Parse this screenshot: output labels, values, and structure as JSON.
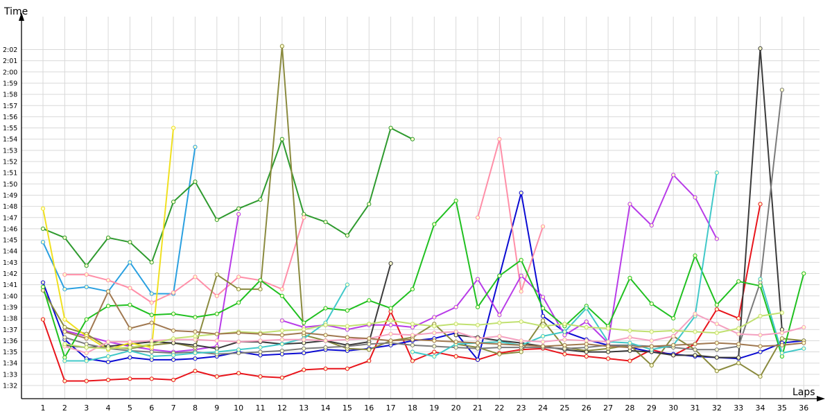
{
  "chart_data": {
    "type": "line",
    "ylabel": "Time",
    "xlabel": "Laps",
    "x": [
      1,
      2,
      3,
      4,
      5,
      6,
      7,
      8,
      9,
      10,
      11,
      12,
      13,
      14,
      15,
      16,
      17,
      18,
      19,
      20,
      21,
      22,
      23,
      24,
      25,
      26,
      27,
      28,
      29,
      30,
      31,
      32,
      33,
      34,
      35,
      36
    ],
    "y_ticks": [
      "1:32",
      "1:33",
      "1:34",
      "1:35",
      "1:36",
      "1:37",
      "1:38",
      "1:39",
      "1:40",
      "1:41",
      "1:42",
      "1:43",
      "1:44",
      "1:45",
      "1:46",
      "1:47",
      "1:48",
      "1:49",
      "1:50",
      "1:51",
      "1:52",
      "1:53",
      "1:54",
      "1:55",
      "1:56",
      "1:57",
      "1:58",
      "1:59",
      "2:00",
      "2:01",
      "2:02"
    ],
    "ylim_seconds": [
      91.3,
      124.7
    ],
    "grid": true,
    "legend": "none",
    "series": [
      {
        "color": "#e8141b",
        "values": [
          97.9,
          92.4,
          92.4,
          92.5,
          92.6,
          92.6,
          92.5,
          93.3,
          92.8,
          93.1,
          92.8,
          92.7,
          93.4,
          93.5,
          93.5,
          94.2,
          98.6,
          94.2,
          95.0,
          94.6,
          94.3,
          94.9,
          95.2,
          95.3,
          94.8,
          94.6,
          94.4,
          94.2,
          95.2,
          94.7,
          95.7,
          98.8,
          98.0,
          108.2,
          null,
          null
        ]
      },
      {
        "color": "#0a0ad2",
        "values": [
          101.2,
          96.1,
          94.4,
          94.1,
          94.5,
          94.3,
          94.3,
          94.4,
          94.6,
          95.0,
          94.7,
          94.8,
          94.9,
          95.2,
          95.1,
          95.3,
          95.6,
          96.0,
          96.2,
          96.7,
          94.3,
          101.8,
          109.2,
          98.2,
          96.8,
          96.1,
          95.6,
          95.4,
          95.0,
          94.8,
          94.6,
          94.5,
          94.4,
          95.0,
          95.8,
          96.0
        ]
      },
      {
        "color": "#2aa0e0",
        "values": [
          104.8,
          100.6,
          100.8,
          100.4,
          103.0,
          100.2,
          100.2,
          113.3,
          null,
          null,
          null,
          null,
          null,
          null,
          null,
          null,
          null,
          null,
          null,
          null,
          null,
          null,
          null,
          null,
          null,
          null,
          null,
          null,
          null,
          null,
          null,
          null,
          null,
          null,
          null,
          null
        ]
      },
      {
        "color": "#2e9a2e",
        "values": [
          106.0,
          105.2,
          102.7,
          105.2,
          104.8,
          103.0,
          108.4,
          110.2,
          106.8,
          107.8,
          108.6,
          114.0,
          107.3,
          106.6,
          105.4,
          108.2,
          115.0,
          114.0,
          null,
          null,
          null,
          null,
          null,
          null,
          null,
          null,
          null,
          null,
          null,
          null,
          null,
          null,
          null,
          null,
          null,
          null
        ]
      },
      {
        "color": "#ff8fa8",
        "values": [
          null,
          101.9,
          101.9,
          101.4,
          100.7,
          99.4,
          100.3,
          101.7,
          100.0,
          101.7,
          101.4,
          100.6,
          107.0,
          null,
          null,
          null,
          null,
          null,
          null,
          null,
          107.0,
          114.0,
          100.4,
          106.2,
          null,
          null,
          null,
          null,
          null,
          null,
          null,
          null,
          null,
          null,
          null,
          null
        ]
      },
      {
        "color": "#b83ce8",
        "values": [
          null,
          96.9,
          96.4,
          95.9,
          95.5,
          95.2,
          95.0,
          95.2,
          95.5,
          107.3,
          null,
          97.8,
          97.2,
          97.4,
          97.0,
          97.4,
          97.4,
          97.2,
          98.1,
          99.0,
          101.5,
          98.3,
          101.8,
          99.9,
          96.5,
          97.7,
          95.8,
          108.2,
          106.3,
          110.8,
          108.8,
          105.1,
          null,
          null,
          null,
          null
        ]
      },
      {
        "color": "#8a8a3e",
        "values": [
          100.5,
          97.2,
          96.6,
          95.4,
          95.3,
          95.6,
          95.8,
          95.4,
          101.9,
          100.6,
          100.6,
          122.3,
          96.5,
          96.0,
          95.3,
          95.2,
          96.0,
          96.3,
          97.5,
          95.7,
          95.4,
          94.8,
          95.0,
          97.8,
          95.4,
          95.1,
          95.3,
          95.6,
          93.8,
          96.4,
          95.2,
          93.3,
          94.0,
          92.8,
          96.2,
          96.0
        ]
      },
      {
        "color": "#3a3a3a",
        "values": [
          null,
          95.6,
          95.4,
          95.5,
          95.7,
          95.9,
          95.8,
          95.6,
          95.3,
          95.9,
          95.9,
          95.7,
          95.8,
          96.0,
          95.6,
          95.9,
          102.9,
          null,
          null,
          96.5,
          96.3,
          96.0,
          95.8,
          95.5,
          95.2,
          95.0,
          95.0,
          95.1,
          95.0,
          94.7,
          94.7,
          94.5,
          94.5,
          122.1,
          97.0,
          null
        ]
      },
      {
        "color": "#f0e020",
        "values": [
          107.8,
          97.9,
          96.4,
          95.2,
          95.8,
          95.4,
          115.0,
          null,
          null,
          null,
          null,
          null,
          null,
          null,
          null,
          null,
          null,
          null,
          null,
          null,
          null,
          null,
          null,
          null,
          null,
          null,
          null,
          null,
          null,
          null,
          null,
          null,
          null,
          null,
          null,
          null
        ]
      },
      {
        "color": "#7a7a7a",
        "values": [
          null,
          96.3,
          95.7,
          95.3,
          95.1,
          95.0,
          94.9,
          95.0,
          94.8,
          94.9,
          95.0,
          95.1,
          95.3,
          95.4,
          95.5,
          95.7,
          95.8,
          95.6,
          95.5,
          95.4,
          95.3,
          95.4,
          95.4,
          95.4,
          95.3,
          95.4,
          95.6,
          95.6,
          95.5,
          95.4,
          95.2,
          95.2,
          95.5,
          101.2,
          118.4,
          null
        ]
      },
      {
        "color": "#20c020",
        "values": [
          100.8,
          94.5,
          97.9,
          99.1,
          99.2,
          98.3,
          98.4,
          98.1,
          98.4,
          99.4,
          101.4,
          100.0,
          97.6,
          98.9,
          98.7,
          99.6,
          98.9,
          100.6,
          106.4,
          108.5,
          99.0,
          101.8,
          103.2,
          98.9,
          97.3,
          99.1,
          97.3,
          101.6,
          99.3,
          98.0,
          103.6,
          99.2,
          101.3,
          100.9,
          94.6,
          102.0
        ]
      },
      {
        "color": "#40c8c8",
        "values": [
          null,
          94.2,
          94.2,
          94.6,
          95.1,
          94.6,
          94.7,
          94.9,
          95.0,
          95.2,
          95.4,
          95.7,
          96.2,
          97.6,
          101.0,
          null,
          null,
          95.0,
          94.6,
          95.7,
          95.8,
          95.9,
          95.6,
          96.4,
          96.8,
          98.9,
          95.9,
          95.8,
          95.2,
          95.6,
          98.2,
          111.0,
          null,
          101.5,
          94.9,
          95.3
        ]
      },
      {
        "color": "#f4a0c0",
        "values": [
          null,
          95.5,
          94.9,
          95.9,
          95.9,
          96.0,
          96.1,
          96.1,
          96.0,
          95.9,
          96.0,
          96.1,
          96.1,
          96.0,
          96.1,
          96.2,
          96.6,
          96.5,
          96.7,
          96.8,
          96.2,
          96.4,
          96.0,
          95.9,
          96.1,
          96.0,
          95.9,
          96.3,
          96.0,
          96.4,
          98.4,
          97.5,
          96.6,
          96.5,
          96.7,
          97.2
        ]
      },
      {
        "color": "#c0e070",
        "values": [
          null,
          95.7,
          95.4,
          95.3,
          95.4,
          95.7,
          96.2,
          96.4,
          96.6,
          96.8,
          96.7,
          96.9,
          97.0,
          97.4,
          97.3,
          97.5,
          97.8,
          97.5,
          97.3,
          97.5,
          97.4,
          97.6,
          97.7,
          97.3,
          97.5,
          97.2,
          97.1,
          96.9,
          96.8,
          96.9,
          96.8,
          96.7,
          97.1,
          98.2,
          98.5,
          null
        ]
      },
      {
        "color": "#a07850",
        "values": [
          null,
          96.8,
          96.2,
          100.4,
          97.1,
          97.6,
          96.9,
          96.8,
          96.6,
          96.7,
          96.6,
          96.5,
          96.7,
          96.5,
          96.3,
          96.2,
          96.0,
          96.1,
          96.0,
          95.9,
          95.8,
          95.7,
          95.6,
          95.5,
          95.6,
          95.7,
          95.5,
          95.4,
          95.5,
          95.6,
          95.7,
          95.8,
          95.7,
          95.5,
          95.6,
          95.8
        ]
      }
    ]
  }
}
